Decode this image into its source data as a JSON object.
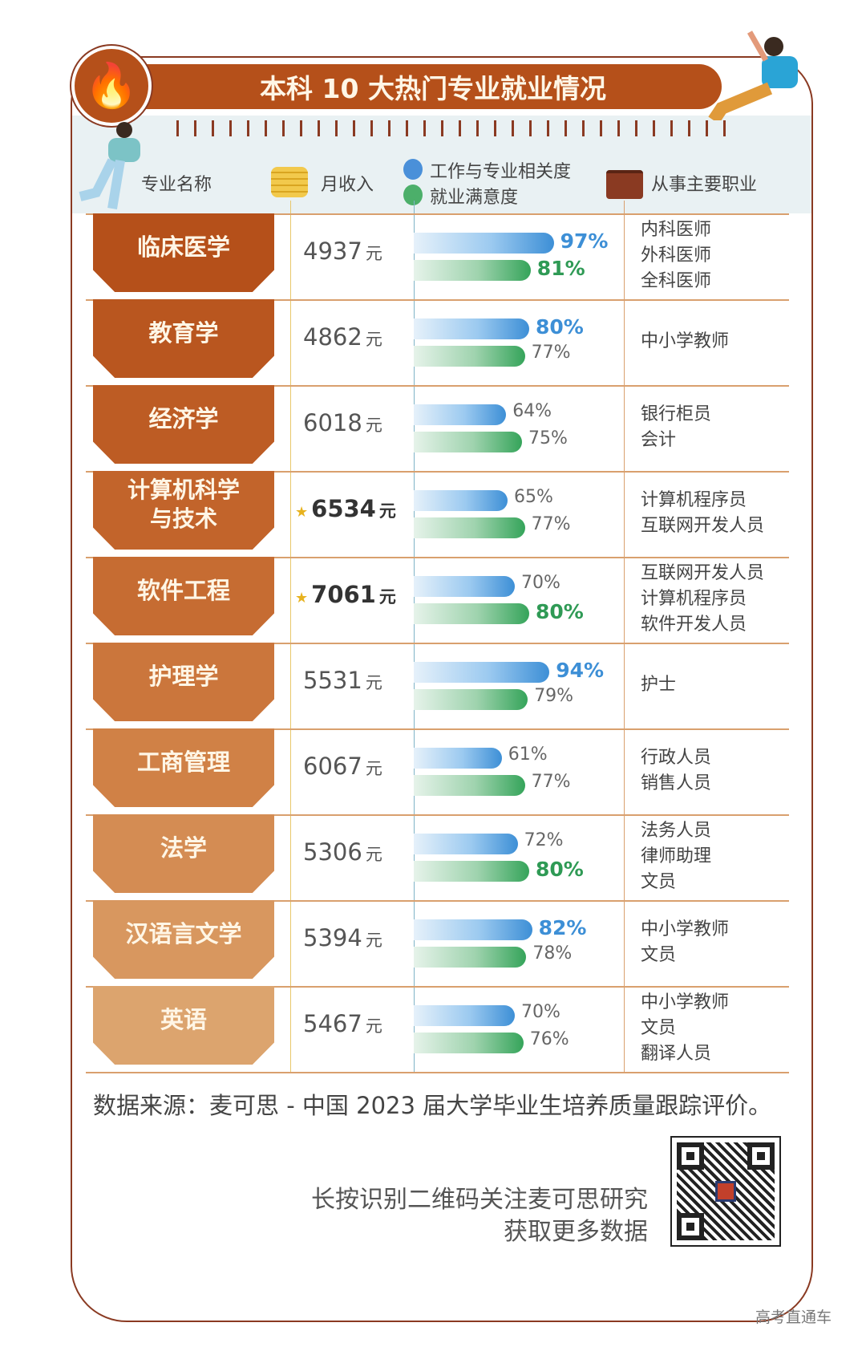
{
  "title": "本科 10 大热门专业就业情况",
  "headers": {
    "major": "专业名称",
    "salary": "月收入",
    "relevance": "工作与专业相关度",
    "satisfaction": "就业满意度",
    "jobs": "从事主要职业"
  },
  "colors": {
    "brand": "#b5501a",
    "relevance": "#3d8fd6",
    "satisfaction": "#35a45a"
  },
  "rows": [
    {
      "major": "临床医学",
      "salary": "4937",
      "unit": "元",
      "featured": false,
      "relevance": 97,
      "relevance_label": "97%",
      "relevance_hl": true,
      "satisfaction": 81,
      "satisfaction_label": "81%",
      "satisfaction_hl": true,
      "jobs": [
        "内科医师",
        "外科医师",
        "全科医师"
      ]
    },
    {
      "major": "教育学",
      "salary": "4862",
      "unit": "元",
      "featured": false,
      "relevance": 80,
      "relevance_label": "80%",
      "relevance_hl": true,
      "satisfaction": 77,
      "satisfaction_label": "77%",
      "satisfaction_hl": false,
      "jobs": [
        "中小学教师"
      ]
    },
    {
      "major": "经济学",
      "salary": "6018",
      "unit": "元",
      "featured": false,
      "relevance": 64,
      "relevance_label": "64%",
      "relevance_hl": false,
      "satisfaction": 75,
      "satisfaction_label": "75%",
      "satisfaction_hl": false,
      "jobs": [
        "银行柜员",
        "会计"
      ]
    },
    {
      "major": "计算机科学\n与技术",
      "salary": "6534",
      "unit": "元",
      "featured": true,
      "relevance": 65,
      "relevance_label": "65%",
      "relevance_hl": false,
      "satisfaction": 77,
      "satisfaction_label": "77%",
      "satisfaction_hl": false,
      "jobs": [
        "计算机程序员",
        "互联网开发人员"
      ]
    },
    {
      "major": "软件工程",
      "salary": "7061",
      "unit": "元",
      "featured": true,
      "relevance": 70,
      "relevance_label": "70%",
      "relevance_hl": false,
      "satisfaction": 80,
      "satisfaction_label": "80%",
      "satisfaction_hl": true,
      "jobs": [
        "互联网开发人员",
        "计算机程序员",
        "软件开发人员"
      ]
    },
    {
      "major": "护理学",
      "salary": "5531",
      "unit": "元",
      "featured": false,
      "relevance": 94,
      "relevance_label": "94%",
      "relevance_hl": true,
      "satisfaction": 79,
      "satisfaction_label": "79%",
      "satisfaction_hl": false,
      "jobs": [
        "护士"
      ]
    },
    {
      "major": "工商管理",
      "salary": "6067",
      "unit": "元",
      "featured": false,
      "relevance": 61,
      "relevance_label": "61%",
      "relevance_hl": false,
      "satisfaction": 77,
      "satisfaction_label": "77%",
      "satisfaction_hl": false,
      "jobs": [
        "行政人员",
        "销售人员"
      ]
    },
    {
      "major": "法学",
      "salary": "5306",
      "unit": "元",
      "featured": false,
      "relevance": 72,
      "relevance_label": "72%",
      "relevance_hl": false,
      "satisfaction": 80,
      "satisfaction_label": "80%",
      "satisfaction_hl": true,
      "jobs": [
        "法务人员",
        "律师助理",
        "文员"
      ]
    },
    {
      "major": "汉语言文学",
      "salary": "5394",
      "unit": "元",
      "featured": false,
      "relevance": 82,
      "relevance_label": "82%",
      "relevance_hl": true,
      "satisfaction": 78,
      "satisfaction_label": "78%",
      "satisfaction_hl": false,
      "jobs": [
        "中小学教师",
        "文员"
      ]
    },
    {
      "major": "英语",
      "salary": "5467",
      "unit": "元",
      "featured": false,
      "relevance": 70,
      "relevance_label": "70%",
      "relevance_hl": false,
      "satisfaction": 76,
      "satisfaction_label": "76%",
      "satisfaction_hl": false,
      "jobs": [
        "中小学教师",
        "文员",
        "翻译人员"
      ]
    }
  ],
  "source": "数据来源：麦可思 - 中国 2023 届大学毕业生培养质量跟踪评价。",
  "qr_text": [
    "长按识别二维码关注麦可思研究",
    "获取更多数据"
  ],
  "watermark": "高考直通车"
}
